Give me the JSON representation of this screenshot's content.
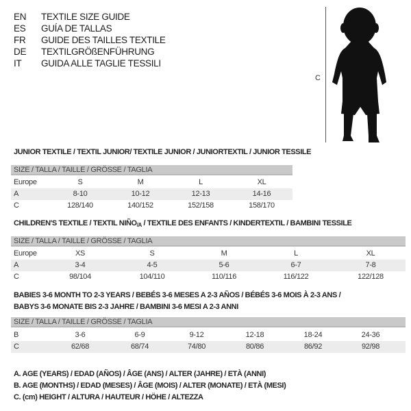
{
  "languages": [
    {
      "code": "EN",
      "title": "TEXTILE SIZE GUIDE"
    },
    {
      "code": "ES",
      "title": "GUÍA DE TALLAS"
    },
    {
      "code": "FR",
      "title": "GUIDE DES TAILLES TEXTILE"
    },
    {
      "code": "DE",
      "title": "TEXTILGRÖßENFÜHRUNG"
    },
    {
      "code": "IT",
      "title": "GUIDA ALLE TAGLIE TESSILI"
    }
  ],
  "figure": {
    "measure_label": "C",
    "icon": "child-silhouette"
  },
  "junior": {
    "title": "JUNIOR TEXTILE / TEXTIL JUNIOR/ TEXTILE JUNIOR / JUNIORTEXTIL / JUNIOR TESSILE",
    "header": "SIZE / TALLA / TAILLE / GRÖSSE / TAGLIA",
    "rows": [
      {
        "label": "Europe",
        "cells": [
          "S",
          "M",
          "L",
          "XL"
        ]
      },
      {
        "label": "A",
        "cells": [
          "8-10",
          "10-12",
          "12-13",
          "14-16"
        ]
      },
      {
        "label": "C",
        "cells": [
          "128/140",
          "140/152",
          "152/158",
          "158/170"
        ]
      }
    ]
  },
  "children": {
    "title_pre": "CHILDREN'S TEXTILE / TEXTIL NIÑO",
    "title_sub": "/A",
    "title_post": " / TEXTILE DES ENFANTS / KINDERTEXTIL / BAMBINI TESSILE",
    "header": "SIZE / TALLA / TAILLE / GRÖSSE / TAGLIA",
    "rows": [
      {
        "label": "Europe",
        "cells": [
          "XS",
          "S",
          "M",
          "L",
          "XL"
        ]
      },
      {
        "label": "A",
        "cells": [
          "3-4",
          "4-5",
          "5-6",
          "6-7",
          "7-8"
        ]
      },
      {
        "label": "C",
        "cells": [
          "98/104",
          "104/110",
          "110/116",
          "116/122",
          "122/128"
        ]
      }
    ]
  },
  "babies": {
    "title_line1": "BABIES 3-6 MONTH TO 2-3 YEARS / BEBÉS 3-6 MESES A 2-3 AÑOS / BÉBÉS 3-6 MOIS À 2-3 ANS /",
    "title_line2": "BABYS 3-6 MONATE BIS 2-3 JAHRE / BAMBINI 3-6 MESI A 2-3 ANNI",
    "header": "SIZE / TALLA / TAILLE / GRÖSSE / TAGLIA",
    "rows": [
      {
        "label": "B",
        "cells": [
          "3-6",
          "6-9",
          "9-12",
          "12-18",
          "18-24",
          "24-36"
        ]
      },
      {
        "label": "C",
        "cells": [
          "62/68",
          "68/74",
          "74/80",
          "80/86",
          "86/92",
          "92/98"
        ]
      }
    ]
  },
  "legend": [
    "A. AGE (YEARS) / EDAD (AÑOS) / ÂGE (ANS) / ALTER (JAHRE) / ETÀ (ANNI)",
    "B. AGE (MONTHS) / EDAD (MESES) / ÂGE (MOIS) / ALTER (MONATE) / ETÀ (MESI)",
    "C. (cm) HEIGHT / ALTURA / HAUTEUR / HÖHE / ALTEZZA"
  ]
}
